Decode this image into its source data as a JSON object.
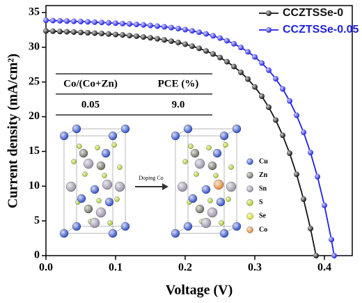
{
  "chart_data": {
    "type": "line",
    "xlabel": "Voltage (V)",
    "ylabel": "Current density (mA/cm²)",
    "xlim": [
      0,
      0.44
    ],
    "ylim": [
      0,
      36
    ],
    "xticks": [
      {
        "value": 0,
        "label": "0.0"
      },
      0.1,
      0.2,
      0.3,
      0.4
    ],
    "yticks": [
      0,
      5,
      10,
      15,
      20,
      25,
      30,
      35
    ],
    "legend": "top-right",
    "series": [
      {
        "name": "CCZTSSe-0",
        "color": "#111111",
        "x": [
          0,
          0.01,
          0.02,
          0.03,
          0.04,
          0.05,
          0.06,
          0.07,
          0.08,
          0.09,
          0.1,
          0.11,
          0.12,
          0.13,
          0.14,
          0.15,
          0.16,
          0.17,
          0.18,
          0.19,
          0.2,
          0.21,
          0.22,
          0.23,
          0.24,
          0.25,
          0.26,
          0.27,
          0.28,
          0.29,
          0.3,
          0.31,
          0.32,
          0.33,
          0.34,
          0.35,
          0.36,
          0.37,
          0.38,
          0.388
        ],
        "values": [
          32.35,
          32.31,
          32.26,
          32.23,
          32.19,
          32.14,
          32.09,
          32.03,
          31.98,
          31.91,
          31.84,
          31.77,
          31.68,
          31.59,
          31.48,
          31.36,
          31.22,
          31.06,
          30.88,
          30.68,
          30.44,
          30.16,
          29.84,
          29.46,
          29.03,
          28.52,
          27.92,
          27.22,
          26.39,
          25.42,
          24.29,
          22.95,
          21.37,
          19.52,
          17.33,
          14.75,
          11.71,
          8.13,
          3.9,
          0
        ]
      },
      {
        "name": "CCZTSSe-0.05",
        "color": "#1f1fe0",
        "x": [
          0,
          0.01,
          0.02,
          0.03,
          0.04,
          0.05,
          0.06,
          0.07,
          0.08,
          0.09,
          0.1,
          0.11,
          0.12,
          0.13,
          0.14,
          0.15,
          0.16,
          0.17,
          0.18,
          0.19,
          0.2,
          0.21,
          0.22,
          0.23,
          0.24,
          0.25,
          0.26,
          0.27,
          0.28,
          0.29,
          0.3,
          0.31,
          0.32,
          0.33,
          0.34,
          0.35,
          0.36,
          0.37,
          0.38,
          0.39,
          0.4,
          0.41,
          0.414
        ],
        "values": [
          33.88,
          33.84,
          33.81,
          33.77,
          33.73,
          33.7,
          33.66,
          33.61,
          33.57,
          33.52,
          33.47,
          33.41,
          33.35,
          33.29,
          33.22,
          33.14,
          33.04,
          32.94,
          32.83,
          32.69,
          32.54,
          32.37,
          32.16,
          31.93,
          31.65,
          31.32,
          30.94,
          30.5,
          29.97,
          29.34,
          28.61,
          27.73,
          26.7,
          25.47,
          24.01,
          22.27,
          20.21,
          17.76,
          14.84,
          11.37,
          7.24,
          2.32,
          0
        ]
      }
    ],
    "inset": {
      "table": {
        "header": [
          "Co/(Co+Zn)",
          "PCE (%)"
        ],
        "rows": [
          [
            "0.05",
            "9.0"
          ]
        ]
      },
      "arrow_label": "Doping Co",
      "atoms": [
        {
          "name": "Cu",
          "color": "#2f4fc8"
        },
        {
          "name": "Zn",
          "color": "#6e6e62"
        },
        {
          "name": "Sn",
          "color": "#9a92a8"
        },
        {
          "name": "S",
          "color": "#a8d020"
        },
        {
          "name": "Se",
          "color": "#e0e020"
        },
        {
          "name": "Co",
          "color": "#e08a3a"
        }
      ]
    }
  }
}
